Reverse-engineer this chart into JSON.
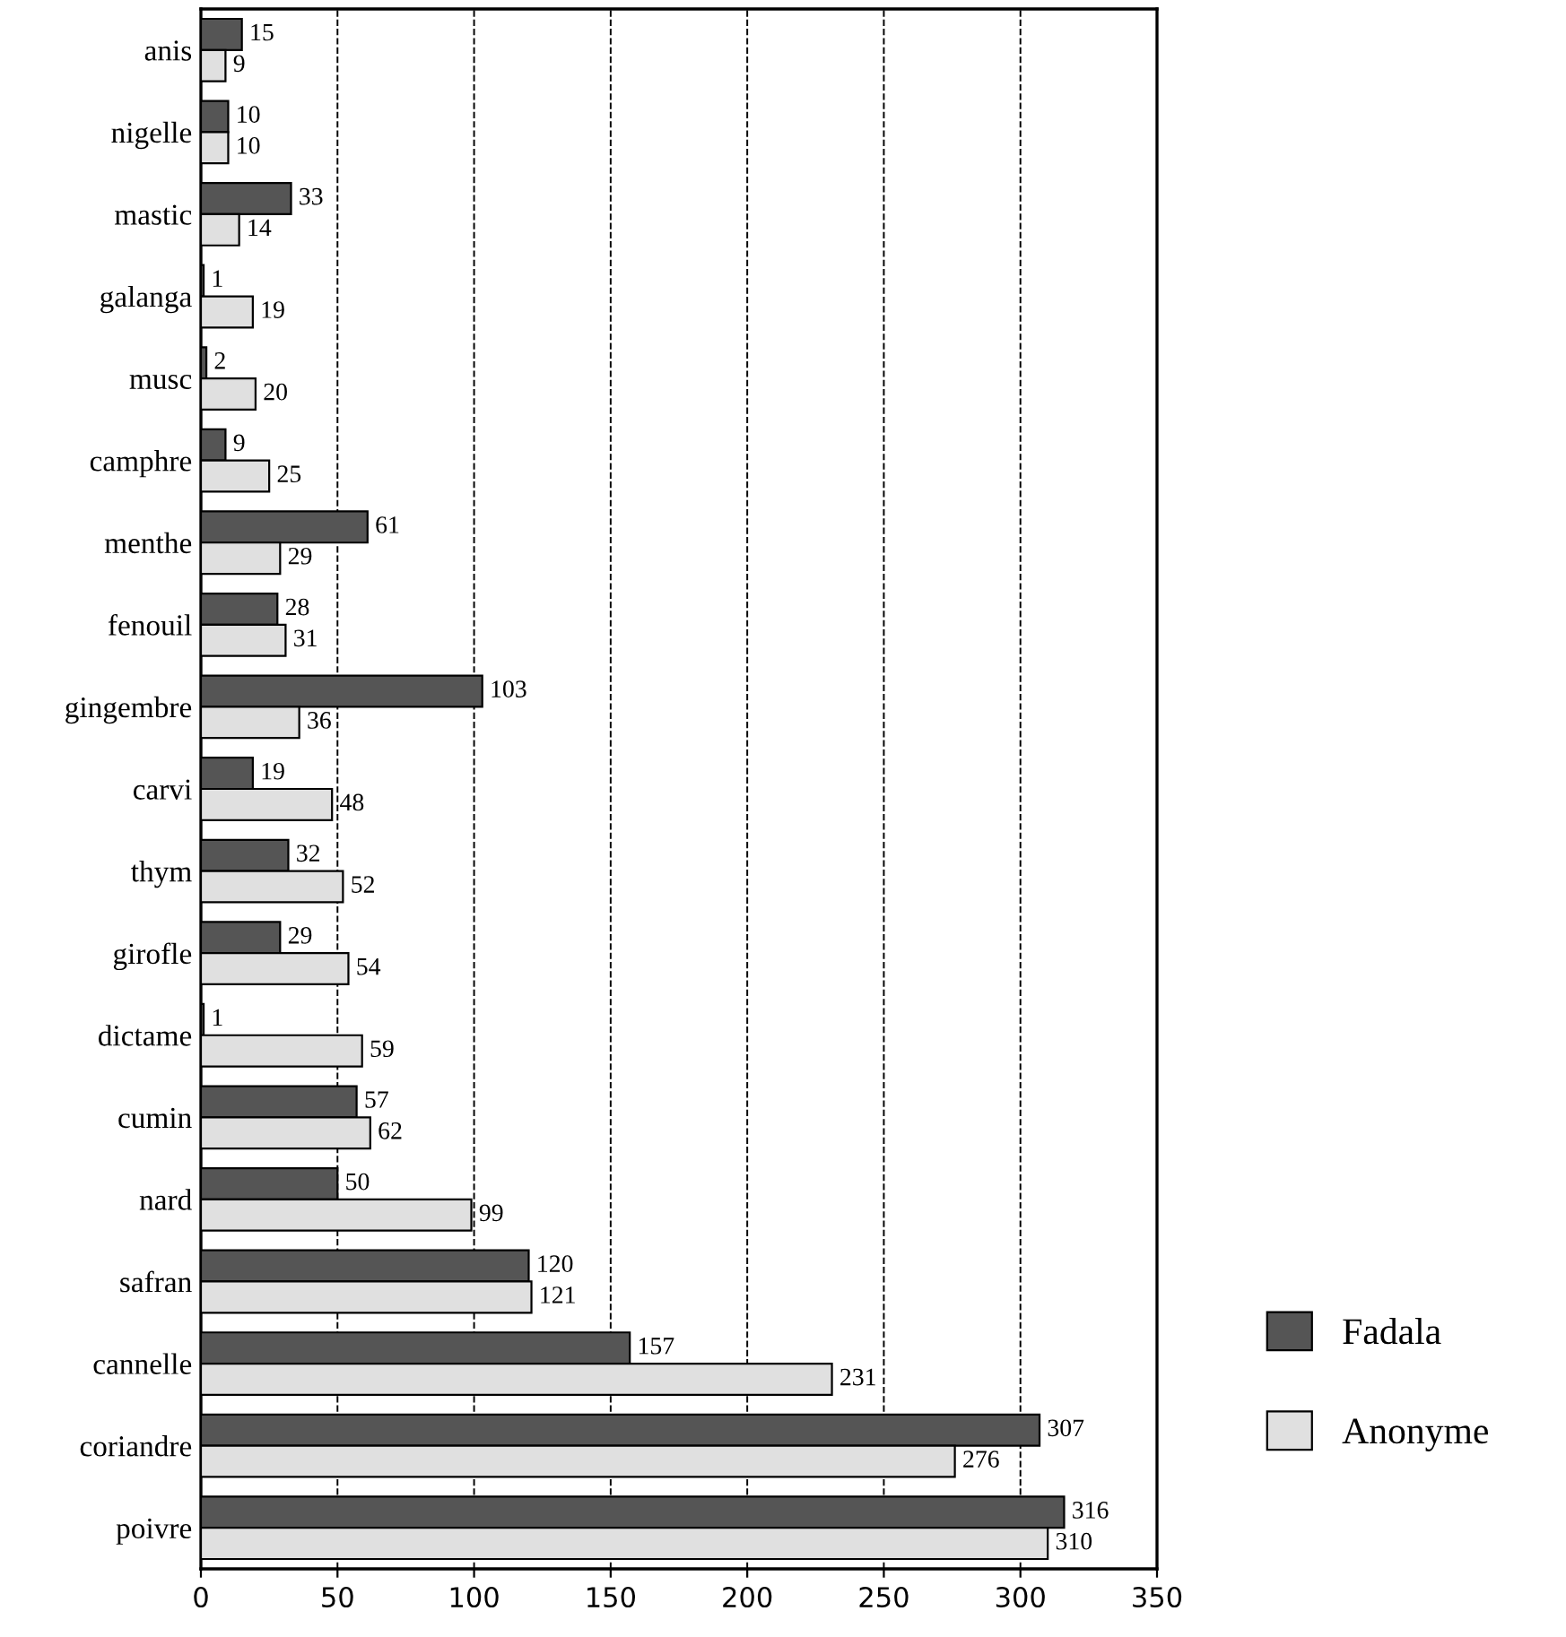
{
  "chart_data": {
    "type": "bar",
    "orientation": "horizontal",
    "categories": [
      "anis",
      "nigelle",
      "mastic",
      "galanga",
      "musc",
      "camphre",
      "menthe",
      "fenouil",
      "gingembre",
      "carvi",
      "thym",
      "girofle",
      "dictame",
      "cumin",
      "nard",
      "safran",
      "cannelle",
      "coriandre",
      "poivre"
    ],
    "series": [
      {
        "name": "Fadala",
        "color": "#555555",
        "values": [
          15,
          10,
          33,
          1,
          2,
          9,
          61,
          28,
          103,
          19,
          32,
          29,
          1,
          57,
          50,
          120,
          157,
          307,
          316
        ]
      },
      {
        "name": "Anonyme",
        "color": "#e0e0e0",
        "values": [
          9,
          10,
          14,
          19,
          20,
          25,
          29,
          31,
          36,
          48,
          52,
          54,
          59,
          62,
          99,
          121,
          231,
          276,
          310
        ]
      }
    ],
    "xlim": [
      0,
      350
    ],
    "xticks": [
      0,
      50,
      100,
      150,
      200,
      250,
      300,
      350
    ],
    "grid": "x",
    "line_style": "dashed",
    "legend": "right",
    "data_labels": true
  }
}
